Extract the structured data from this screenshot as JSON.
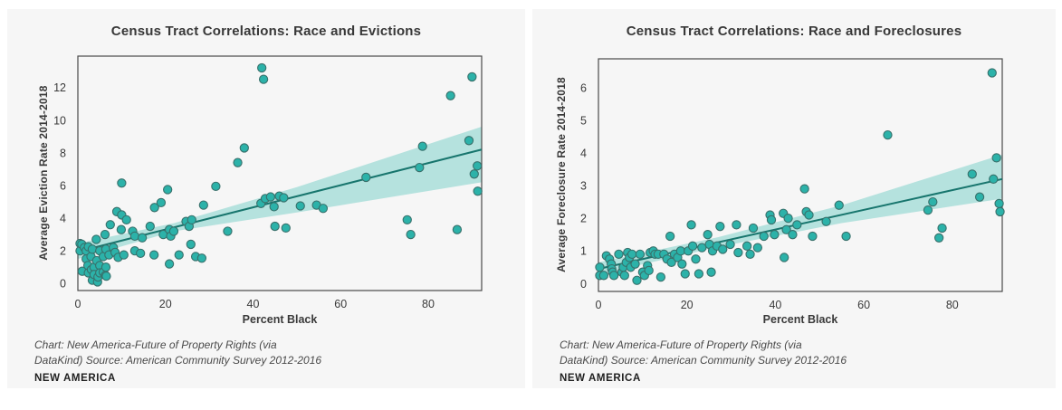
{
  "page": {
    "background": "#ffffff",
    "card_background": "#f6f6f6"
  },
  "panels": [
    {
      "attribution_line1": "Chart: New America-Future of Property Rights (via",
      "attribution_line2": "DataKind) Source: American Community Survey 2012-2016",
      "logo_text": "NEW AMERICA"
    },
    {
      "attribution_line1": "Chart: New America-Future of Property Rights (via",
      "attribution_line2": "DataKind) Source: American Community Survey 2012-2016",
      "logo_text": "NEW AMERICA"
    }
  ],
  "chart_data": [
    {
      "type": "scatter",
      "title": "Census Tract Correlations: Race and Evictions",
      "xlabel": "Percent Black",
      "ylabel": "Average Eviction Rate 2014-2018",
      "xlim": [
        0,
        92.2
      ],
      "ylim": [
        -0.43,
        13.92
      ],
      "xticks": [
        0,
        20,
        40,
        60,
        80
      ],
      "yticks": [
        0,
        2,
        4,
        6,
        8,
        10,
        12
      ],
      "grid": false,
      "legend": "none",
      "colors": {
        "point_fill": "#2cb2a9",
        "point_stroke": "#38706b",
        "trend_line": "#17756d",
        "band": "#b5e2de",
        "axis": "#4a4a4a",
        "text": "#3a3a3a"
      },
      "trend_line": {
        "x0": 0,
        "y0": 1.95,
        "x1": 92.2,
        "y1": 8.2
      },
      "confidence_band": {
        "x": [
          0,
          22,
          50,
          92.2
        ],
        "upper": [
          2.45,
          3.7,
          5.9,
          9.6
        ],
        "lower": [
          1.5,
          3.2,
          4.35,
          6.2
        ]
      },
      "points": [
        [
          0.5,
          2.45
        ],
        [
          0.5,
          2.0
        ],
        [
          0.9,
          2.4
        ],
        [
          1.0,
          0.75
        ],
        [
          1.5,
          2.2
        ],
        [
          1.9,
          2.0
        ],
        [
          1.9,
          1.5
        ],
        [
          2.3,
          1.1
        ],
        [
          2.4,
          2.25
        ],
        [
          2.4,
          0.65
        ],
        [
          3.0,
          1.65
        ],
        [
          3.1,
          0.85
        ],
        [
          3.3,
          2.1
        ],
        [
          3.3,
          0.2
        ],
        [
          3.7,
          1.0
        ],
        [
          3.7,
          0.55
        ],
        [
          4.2,
          2.7
        ],
        [
          4.3,
          1.4
        ],
        [
          4.5,
          0.1
        ],
        [
          4.6,
          0.4
        ],
        [
          5.0,
          2.0
        ],
        [
          5.0,
          1.1
        ],
        [
          5.0,
          0.65
        ],
        [
          5.8,
          1.65
        ],
        [
          5.8,
          0.7
        ],
        [
          6.2,
          3.0
        ],
        [
          6.3,
          0.5
        ],
        [
          6.4,
          2.1
        ],
        [
          6.4,
          1.0
        ],
        [
          6.5,
          0.45
        ],
        [
          7.1,
          1.75
        ],
        [
          7.4,
          3.6
        ],
        [
          8.1,
          2.2
        ],
        [
          8.5,
          1.9
        ],
        [
          8.9,
          4.4
        ],
        [
          9.2,
          1.6
        ],
        [
          9.9,
          3.3
        ],
        [
          10.0,
          4.2
        ],
        [
          10.0,
          6.15
        ],
        [
          10.5,
          1.75
        ],
        [
          11.1,
          3.9
        ],
        [
          12.5,
          3.2
        ],
        [
          13.0,
          2.9
        ],
        [
          13.0,
          2.0
        ],
        [
          14.3,
          1.85
        ],
        [
          14.7,
          2.8
        ],
        [
          16.5,
          3.5
        ],
        [
          17.4,
          1.75
        ],
        [
          17.5,
          4.65
        ],
        [
          19.0,
          4.95
        ],
        [
          19.5,
          3.0
        ],
        [
          20.5,
          5.75
        ],
        [
          20.9,
          3.3
        ],
        [
          20.9,
          1.2
        ],
        [
          21.2,
          2.9
        ],
        [
          21.9,
          3.2
        ],
        [
          23.1,
          1.75
        ],
        [
          24.7,
          3.8
        ],
        [
          25.4,
          3.5
        ],
        [
          25.8,
          2.4
        ],
        [
          26.0,
          3.9
        ],
        [
          26.9,
          1.65
        ],
        [
          28.3,
          1.55
        ],
        [
          28.7,
          4.8
        ],
        [
          31.5,
          5.95
        ],
        [
          34.2,
          3.2
        ],
        [
          36.5,
          7.4
        ],
        [
          38.0,
          8.3
        ],
        [
          41.8,
          4.9
        ],
        [
          42.0,
          13.2
        ],
        [
          42.4,
          12.5
        ],
        [
          42.8,
          5.2
        ],
        [
          44.0,
          5.3
        ],
        [
          44.8,
          4.7
        ],
        [
          45.0,
          3.5
        ],
        [
          46.0,
          5.35
        ],
        [
          47.0,
          5.25
        ],
        [
          47.5,
          3.4
        ],
        [
          50.8,
          4.75
        ],
        [
          54.5,
          4.8
        ],
        [
          56.0,
          4.6
        ],
        [
          65.8,
          6.5
        ],
        [
          75.2,
          3.9
        ],
        [
          76.0,
          3.0
        ],
        [
          78.0,
          7.1
        ],
        [
          78.7,
          8.4
        ],
        [
          85.1,
          11.5
        ],
        [
          86.6,
          3.3
        ],
        [
          89.3,
          8.75
        ],
        [
          90.0,
          12.65
        ],
        [
          90.5,
          6.7
        ],
        [
          91.2,
          7.2
        ],
        [
          91.3,
          5.65
        ]
      ]
    },
    {
      "type": "scatter",
      "title": "Census Tract Correlations: Race and Foreclosures",
      "xlabel": "Percent Black",
      "ylabel": "Average Foreclosure Rate 2014-2018",
      "xlim": [
        0,
        91.3
      ],
      "ylim": [
        -0.24,
        6.88
      ],
      "xticks": [
        0,
        20,
        40,
        60,
        80
      ],
      "yticks": [
        0,
        1,
        2,
        3,
        4,
        5,
        6
      ],
      "grid": false,
      "legend": "none",
      "colors": {
        "point_fill": "#2cb2a9",
        "point_stroke": "#38706b",
        "trend_line": "#17756d",
        "band": "#b5e2de",
        "axis": "#4a4a4a",
        "text": "#3a3a3a"
      },
      "trend_line": {
        "x0": 0,
        "y0": 0.45,
        "x1": 91.3,
        "y1": 3.2
      },
      "confidence_band": {
        "x": [
          0,
          27,
          55,
          91.3
        ],
        "upper": [
          0.65,
          1.42,
          2.4,
          3.95
        ],
        "lower": [
          0.28,
          1.12,
          1.85,
          2.6
        ]
      },
      "points": [
        [
          0.3,
          0.5
        ],
        [
          0.3,
          0.25
        ],
        [
          1.2,
          0.25
        ],
        [
          1.8,
          0.85
        ],
        [
          2.5,
          0.75
        ],
        [
          2.9,
          0.6
        ],
        [
          3.0,
          0.45
        ],
        [
          3.2,
          0.35
        ],
        [
          3.5,
          0.25
        ],
        [
          4.6,
          0.9
        ],
        [
          5.3,
          0.35
        ],
        [
          5.6,
          0.5
        ],
        [
          5.9,
          0.25
        ],
        [
          6.3,
          0.65
        ],
        [
          6.6,
          0.95
        ],
        [
          7.0,
          0.8
        ],
        [
          7.3,
          0.5
        ],
        [
          7.6,
          0.9
        ],
        [
          8.3,
          0.6
        ],
        [
          8.7,
          0.1
        ],
        [
          9.4,
          0.9
        ],
        [
          10.0,
          0.35
        ],
        [
          10.4,
          0.25
        ],
        [
          11.1,
          0.55
        ],
        [
          11.4,
          0.4
        ],
        [
          11.7,
          0.95
        ],
        [
          12.4,
          1.0
        ],
        [
          12.8,
          0.9
        ],
        [
          13.5,
          0.9
        ],
        [
          14.1,
          0.2
        ],
        [
          14.8,
          0.9
        ],
        [
          15.5,
          0.75
        ],
        [
          16.2,
          1.45
        ],
        [
          16.5,
          0.65
        ],
        [
          17.2,
          0.9
        ],
        [
          17.9,
          0.8
        ],
        [
          18.6,
          1.0
        ],
        [
          18.9,
          0.6
        ],
        [
          19.6,
          0.3
        ],
        [
          20.3,
          1.0
        ],
        [
          21.0,
          1.8
        ],
        [
          21.3,
          1.15
        ],
        [
          22.0,
          0.75
        ],
        [
          22.7,
          0.3
        ],
        [
          23.4,
          1.1
        ],
        [
          24.7,
          1.5
        ],
        [
          25.1,
          1.2
        ],
        [
          25.5,
          0.35
        ],
        [
          25.8,
          1.0
        ],
        [
          26.8,
          1.15
        ],
        [
          27.5,
          1.75
        ],
        [
          28.1,
          1.05
        ],
        [
          29.8,
          1.2
        ],
        [
          31.2,
          1.8
        ],
        [
          31.6,
          0.95
        ],
        [
          33.6,
          1.15
        ],
        [
          34.3,
          0.9
        ],
        [
          35.0,
          1.7
        ],
        [
          36.0,
          1.1
        ],
        [
          37.4,
          1.45
        ],
        [
          38.8,
          2.1
        ],
        [
          39.1,
          1.95
        ],
        [
          39.8,
          1.5
        ],
        [
          41.8,
          2.15
        ],
        [
          42.0,
          0.8
        ],
        [
          42.5,
          1.65
        ],
        [
          42.9,
          2.0
        ],
        [
          43.9,
          1.5
        ],
        [
          44.9,
          1.8
        ],
        [
          46.6,
          2.9
        ],
        [
          47.0,
          2.2
        ],
        [
          47.6,
          2.1
        ],
        [
          48.4,
          1.45
        ],
        [
          51.5,
          1.9
        ],
        [
          54.4,
          2.4
        ],
        [
          56.0,
          1.45
        ],
        [
          65.4,
          4.55
        ],
        [
          74.5,
          2.25
        ],
        [
          75.6,
          2.5
        ],
        [
          77.0,
          1.4
        ],
        [
          77.7,
          1.7
        ],
        [
          84.5,
          3.35
        ],
        [
          86.2,
          2.65
        ],
        [
          89.0,
          6.45
        ],
        [
          89.3,
          3.2
        ],
        [
          90.0,
          3.85
        ],
        [
          90.6,
          2.45
        ],
        [
          90.8,
          2.2
        ]
      ]
    }
  ]
}
